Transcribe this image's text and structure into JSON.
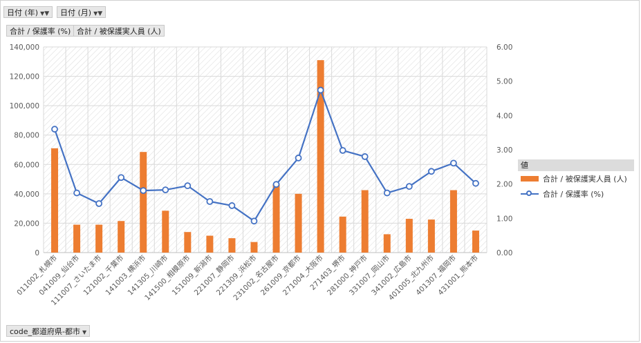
{
  "filters": {
    "year_label": "日付 (年)",
    "month_label": "日付 (月)"
  },
  "value_fields": {
    "field1": "合計 / 保護率 (%)",
    "field2": "合計 / 被保護実人員 (人)"
  },
  "axis_field": {
    "label": "code_都道府県-都市"
  },
  "legend": {
    "title": "値",
    "bar_series": "合計 / 被保護実人員 (人)",
    "line_series": "合計 / 保護率 (%)"
  },
  "colors": {
    "bar": "#ED7D31",
    "line": "#4472C4"
  },
  "chart_data": {
    "type": "bar+line",
    "categories": [
      "011002_札幌市",
      "041009_仙台市",
      "111007_さいたま市",
      "121002_千葉市",
      "141003_横浜市",
      "141305_川崎市",
      "141500_相模原市",
      "151009_新潟市",
      "221007_静岡市",
      "221309_浜松市",
      "231002_名古屋市",
      "261009_京都市",
      "271004_大阪市",
      "271403_堺市",
      "281000_神戸市",
      "331007_岡山市",
      "341002_広島市",
      "401005_北九州市",
      "401307_福岡市",
      "431001_熊本市"
    ],
    "series": [
      {
        "name": "合計 / 被保護実人員 (人)",
        "type": "bar",
        "axis": "left",
        "values": [
          71000,
          19000,
          19000,
          21500,
          68500,
          28500,
          14000,
          11500,
          9800,
          7200,
          46500,
          40000,
          131000,
          24500,
          42500,
          12500,
          23000,
          22500,
          42500,
          15000
        ]
      },
      {
        "name": "合計 / 保護率 (%)",
        "type": "line",
        "axis": "right",
        "values": [
          3.6,
          1.74,
          1.43,
          2.19,
          1.81,
          1.83,
          1.95,
          1.49,
          1.37,
          0.92,
          1.99,
          2.76,
          4.74,
          2.98,
          2.8,
          1.74,
          1.93,
          2.37,
          2.61,
          2.02
        ]
      }
    ],
    "y_left": {
      "min": 0,
      "max": 140000,
      "ticks": [
        "0",
        "20,000",
        "40,000",
        "60,000",
        "80,000",
        "100,000",
        "120,000",
        "140,000"
      ]
    },
    "y_right": {
      "min": 0,
      "max": 6,
      "ticks": [
        "0.00",
        "1.00",
        "2.00",
        "3.00",
        "4.00",
        "5.00",
        "6.00"
      ]
    },
    "legend_position": "right",
    "grid": true
  }
}
